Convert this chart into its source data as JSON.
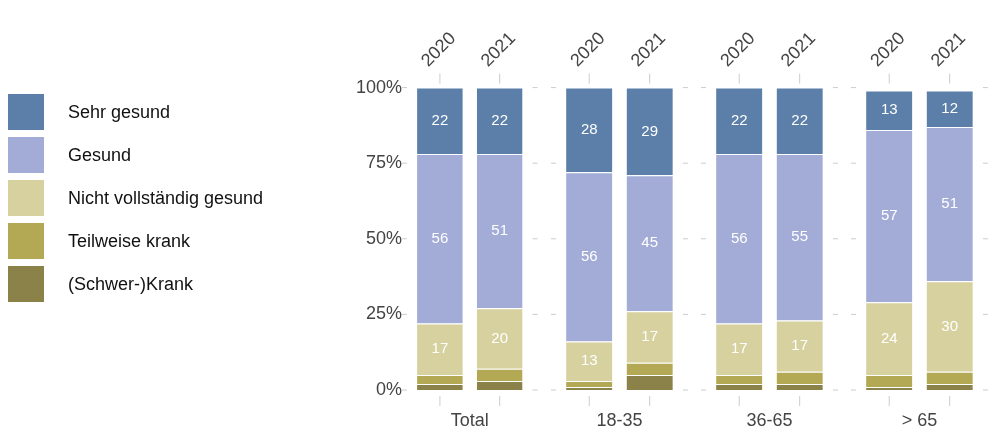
{
  "chart_data": [
    {
      "type": "bar",
      "stacked": true,
      "xlabel": "Total",
      "categories": [
        "2020",
        "2021"
      ],
      "ylim": [
        0,
        100
      ],
      "yticks": [
        {
          "value": 0,
          "label": "0%"
        },
        {
          "value": 25,
          "label": "25%"
        },
        {
          "value": 50,
          "label": "50%"
        },
        {
          "value": 75,
          "label": "75%"
        },
        {
          "value": 100,
          "label": "100%"
        }
      ],
      "legend": "left",
      "grid": false,
      "series": [
        {
          "name": "(Schwer-)Krank",
          "color": "#8a8249",
          "values": [
            2,
            3
          ],
          "value_labels": [
            null,
            null
          ]
        },
        {
          "name": "Teilweise krank",
          "color": "#b3a955",
          "values": [
            3,
            4
          ],
          "value_labels": [
            null,
            null
          ]
        },
        {
          "name": "Nicht vollständig gesund",
          "color": "#d6d19f",
          "values": [
            17,
            20
          ],
          "value_labels": [
            "17",
            "20"
          ]
        },
        {
          "name": "Gesund",
          "color": "#a3abd7",
          "values": [
            56,
            51
          ],
          "value_labels": [
            "56",
            "51"
          ]
        },
        {
          "name": "Sehr gesund",
          "color": "#5b7fa8",
          "values": [
            22,
            22
          ],
          "value_labels": [
            "22",
            "22"
          ]
        }
      ]
    },
    {
      "type": "bar",
      "stacked": true,
      "xlabel": "18-35",
      "categories": [
        "2020",
        "2021"
      ],
      "ylim": [
        0,
        100
      ],
      "yticks": [
        {
          "value": 0,
          "label": null
        },
        {
          "value": 25,
          "label": null
        },
        {
          "value": 50,
          "label": null
        },
        {
          "value": 75,
          "label": null
        },
        {
          "value": 100,
          "label": null
        }
      ],
      "tick_labels": "x",
      "grid": false,
      "series": [
        {
          "color": "#8a8249",
          "values": [
            1,
            5
          ],
          "value_labels": [
            null,
            null
          ]
        },
        {
          "color": "#b3a955",
          "values": [
            2,
            4
          ],
          "value_labels": [
            null,
            null
          ]
        },
        {
          "color": "#d6d19f",
          "values": [
            13,
            17
          ],
          "value_labels": [
            "13",
            "17"
          ]
        },
        {
          "color": "#a3abd7",
          "values": [
            56,
            45
          ],
          "value_labels": [
            "56",
            "45"
          ]
        },
        {
          "color": "#5b7fa8",
          "values": [
            28,
            29
          ],
          "value_labels": [
            "28",
            "29"
          ]
        }
      ]
    },
    {
      "type": "bar",
      "stacked": true,
      "xlabel": "36-65",
      "categories": [
        "2020",
        "2021"
      ],
      "ylim": [
        0,
        100
      ],
      "yticks": [
        {
          "value": 0,
          "label": null
        },
        {
          "value": 25,
          "label": null
        },
        {
          "value": 50,
          "label": null
        },
        {
          "value": 75,
          "label": null
        },
        {
          "value": 100,
          "label": null
        }
      ],
      "tick_labels": "x",
      "grid": false,
      "series": [
        {
          "color": "#8a8249",
          "values": [
            2,
            2
          ],
          "value_labels": [
            null,
            null
          ]
        },
        {
          "color": "#b3a955",
          "values": [
            3,
            4
          ],
          "value_labels": [
            null,
            null
          ]
        },
        {
          "color": "#d6d19f",
          "values": [
            17,
            17
          ],
          "value_labels": [
            "17",
            "17"
          ]
        },
        {
          "color": "#a3abd7",
          "values": [
            56,
            55
          ],
          "value_labels": [
            "56",
            "55"
          ]
        },
        {
          "color": "#5b7fa8",
          "values": [
            22,
            22
          ],
          "value_labels": [
            "22",
            "22"
          ]
        }
      ]
    },
    {
      "type": "bar",
      "stacked": true,
      "xlabel": "> 65",
      "categories": [
        "2020",
        "2021"
      ],
      "ylim": [
        0,
        100
      ],
      "yticks": [
        {
          "value": 0,
          "label": null
        },
        {
          "value": 25,
          "label": null
        },
        {
          "value": 50,
          "label": null
        },
        {
          "value": 75,
          "label": null
        },
        {
          "value": 100,
          "label": null
        }
      ],
      "tick_labels": "x",
      "grid": false,
      "series": [
        {
          "color": "#8a8249",
          "values": [
            1,
            2
          ],
          "value_labels": [
            null,
            null
          ]
        },
        {
          "color": "#b3a955",
          "values": [
            4,
            4
          ],
          "value_labels": [
            null,
            null
          ]
        },
        {
          "color": "#d6d19f",
          "values": [
            24,
            30
          ],
          "value_labels": [
            "24",
            "30"
          ]
        },
        {
          "color": "#a3abd7",
          "values": [
            57,
            51
          ],
          "value_labels": [
            "57",
            "51"
          ]
        },
        {
          "color": "#5b7fa8",
          "values": [
            13,
            12
          ],
          "value_labels": [
            "13",
            "12"
          ]
        }
      ]
    }
  ]
}
